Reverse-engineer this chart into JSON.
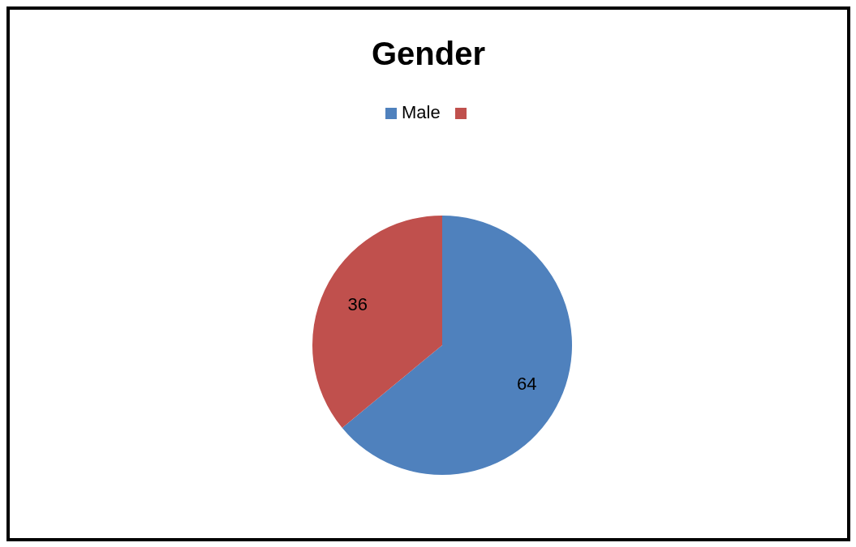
{
  "chart_data": {
    "type": "pie",
    "title": "Gender",
    "categories": [
      "Male",
      null
    ],
    "values": [
      64,
      36
    ],
    "colors": [
      "#4f81bd",
      "#c0504d"
    ],
    "data_labels": true,
    "legend": "top"
  }
}
